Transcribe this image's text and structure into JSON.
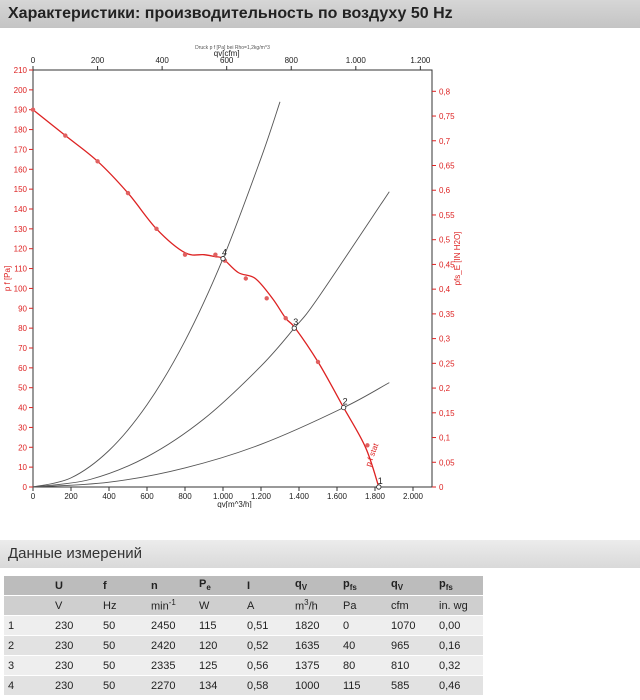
{
  "header": {
    "title": "Характеристики: производительность по воздуху 50 Hz"
  },
  "chart_data": {
    "type": "line",
    "subtitle": "Druck p f [Pa] bei Rho=1,2kg/m^3",
    "x_label": "qv[m^3/h]",
    "x2_label": "qv[cfm]",
    "y_label": "p f [Pa]",
    "y2_label": "pfs_E [IN H2O]",
    "xlim": [
      0,
      2100
    ],
    "ylim": [
      0,
      210
    ],
    "x_ticks": [
      "0",
      "200",
      "400",
      "600",
      "800",
      "1.000",
      "1.200",
      "1.400",
      "1.600",
      "1.800",
      "2.000"
    ],
    "x2_ticks": [
      "0",
      "200",
      "400",
      "600",
      "800",
      "1.000",
      "1.200"
    ],
    "y_ticks": [
      "0",
      "10",
      "20",
      "30",
      "40",
      "50",
      "60",
      "70",
      "80",
      "90",
      "100",
      "110",
      "120",
      "130",
      "140",
      "150",
      "160",
      "170",
      "180",
      "190",
      "200",
      "210"
    ],
    "y2_ticks": [
      "0",
      "0,05",
      "0,1",
      "0,15",
      "0,2",
      "0,25",
      "0,3",
      "0,35",
      "0,4",
      "0,45",
      "0,5",
      "0,55",
      "0,6",
      "0,65",
      "0,7",
      "0,75",
      "0,8"
    ],
    "grid": false,
    "series": [
      {
        "color": "#dd2222",
        "x": [
          0,
          170,
          340,
          500,
          650,
          800,
          900,
          960,
          1000,
          1080,
          1170,
          1260,
          1330,
          1380,
          1500,
          1635,
          1750,
          1820
        ],
        "y": [
          190,
          177,
          164,
          148,
          130,
          118,
          117,
          116,
          115,
          108,
          105,
          95,
          85,
          80,
          63,
          40,
          20,
          0
        ]
      },
      {
        "color": "#555555",
        "x": [
          0,
          200,
          400,
          600,
          800,
          1000,
          1200,
          1300
        ],
        "y": [
          0,
          4.6,
          18.4,
          41.4,
          73.6,
          115,
          165.6,
          194
        ]
      },
      {
        "color": "#555555",
        "x": [
          0,
          300,
          600,
          900,
          1200,
          1375,
          1500,
          1875
        ],
        "y": [
          0,
          3.8,
          15.2,
          34.3,
          60.9,
          80,
          95.2,
          148.7
        ]
      },
      {
        "color": "#555555",
        "x": [
          0,
          400,
          800,
          1200,
          1635,
          1875
        ],
        "y": [
          0,
          2.4,
          9.6,
          21.5,
          40,
          52.6
        ]
      }
    ],
    "markers": {
      "color": "#e06060",
      "x": [
        0,
        170,
        340,
        500,
        650,
        800,
        960,
        1010,
        1120,
        1230,
        1330,
        1500,
        1635,
        1760
      ],
      "y": [
        190,
        177,
        164,
        148,
        130,
        117,
        117,
        114,
        105,
        95,
        85,
        63,
        40,
        21
      ]
    },
    "operating_points": [
      {
        "label": "1",
        "x": 1820,
        "y": 0
      },
      {
        "label": "2",
        "x": 1635,
        "y": 40
      },
      {
        "label": "3",
        "x": 1375,
        "y": 80
      },
      {
        "label": "4",
        "x": 1000,
        "y": 115
      }
    ],
    "curve_label": "p f stat"
  },
  "measurements": {
    "title": "Данные измерений",
    "columns": [
      {
        "sym": "",
        "sub": "",
        "unit": "",
        "sup": ""
      },
      {
        "sym": "U",
        "sub": "",
        "unit": "V",
        "sup": ""
      },
      {
        "sym": "f",
        "sub": "",
        "unit": "Hz",
        "sup": ""
      },
      {
        "sym": "n",
        "sub": "",
        "unit": "min",
        "sup": "-1"
      },
      {
        "sym": "P",
        "sub": "e",
        "unit": "W",
        "sup": ""
      },
      {
        "sym": "I",
        "sub": "",
        "unit": "A",
        "sup": ""
      },
      {
        "sym": "q",
        "sub": "V",
        "unit": "m",
        "sup": "3",
        "unit_tail": "/h"
      },
      {
        "sym": "p",
        "sub": "fs",
        "unit": "Pa",
        "sup": ""
      },
      {
        "sym": "q",
        "sub": "V",
        "unit": "cfm",
        "sup": ""
      },
      {
        "sym": "p",
        "sub": "fs",
        "unit": "in. wg",
        "sup": ""
      }
    ],
    "rows": [
      [
        "1",
        "230",
        "50",
        "2450",
        "115",
        "0,51",
        "1820",
        "0",
        "1070",
        "0,00"
      ],
      [
        "2",
        "230",
        "50",
        "2420",
        "120",
        "0,52",
        "1635",
        "40",
        "965",
        "0,16"
      ],
      [
        "3",
        "230",
        "50",
        "2335",
        "125",
        "0,56",
        "1375",
        "80",
        "810",
        "0,32"
      ],
      [
        "4",
        "230",
        "50",
        "2270",
        "134",
        "0,58",
        "1000",
        "115",
        "585",
        "0,46"
      ]
    ]
  }
}
